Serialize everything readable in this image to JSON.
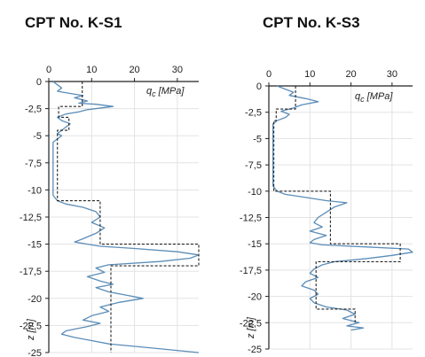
{
  "chart_data": [
    {
      "type": "line",
      "title": "CPT No. K-S1",
      "x_axis_label": "q",
      "x_axis_subscript": "c",
      "x_axis_unit": "[MPa]",
      "y_axis_label": "z [m]",
      "xlim": [
        0,
        35
      ],
      "ylim": [
        -25,
        0
      ],
      "x_ticks": [
        0,
        10,
        20,
        30
      ],
      "y_ticks": [
        0,
        -2.5,
        -5,
        -7.5,
        -10,
        -12.5,
        -15,
        -17.5,
        -20,
        -22.5,
        -25
      ],
      "y_tick_labels": [
        "0",
        "-2,5",
        "-5",
        "-7,5",
        "-10",
        "-12,5",
        "-15",
        "-17,5",
        "-20",
        "-22,5",
        "-25"
      ],
      "grid": true,
      "colors": {
        "measured": "#5b8db8",
        "design": "#222222",
        "grid": "#e3e3e3"
      },
      "series": [
        {
          "style": "solid",
          "points": [
            [
              1,
              0
            ],
            [
              2,
              -0.3
            ],
            [
              3,
              -0.6
            ],
            [
              2,
              -0.9
            ],
            [
              5,
              -1.1
            ],
            [
              8,
              -1.3
            ],
            [
              6,
              -1.5
            ],
            [
              9,
              -1.8
            ],
            [
              7,
              -2.0
            ],
            [
              11,
              -2.1
            ],
            [
              15,
              -2.3
            ],
            [
              9,
              -2.6
            ],
            [
              7,
              -2.8
            ],
            [
              4,
              -3.0
            ],
            [
              2,
              -3.3
            ],
            [
              3,
              -3.6
            ],
            [
              5,
              -3.9
            ],
            [
              4,
              -4.2
            ],
            [
              3,
              -4.5
            ],
            [
              2,
              -4.8
            ],
            [
              3,
              -5.0
            ],
            [
              2,
              -5.3
            ],
            [
              1,
              -5.6
            ],
            [
              1,
              -6.5
            ],
            [
              1,
              -7.5
            ],
            [
              1,
              -8.5
            ],
            [
              1,
              -9.5
            ],
            [
              1,
              -10.5
            ],
            [
              2,
              -11.0
            ],
            [
              4,
              -11.3
            ],
            [
              8,
              -11.6
            ],
            [
              11,
              -12.0
            ],
            [
              12,
              -12.5
            ],
            [
              10,
              -13.0
            ],
            [
              13,
              -13.5
            ],
            [
              11,
              -14.0
            ],
            [
              8,
              -14.5
            ],
            [
              6,
              -14.8
            ],
            [
              9,
              -15.0
            ],
            [
              12,
              -15.2
            ],
            [
              20,
              -15.4
            ],
            [
              30,
              -15.7
            ],
            [
              35,
              -16.0
            ],
            [
              33,
              -16.3
            ],
            [
              26,
              -16.6
            ],
            [
              14,
              -16.9
            ],
            [
              11,
              -17.2
            ],
            [
              13,
              -17.6
            ],
            [
              9,
              -18.0
            ],
            [
              12,
              -18.4
            ],
            [
              15,
              -18.7
            ],
            [
              11,
              -19.0
            ],
            [
              14,
              -19.4
            ],
            [
              18,
              -19.7
            ],
            [
              22,
              -20.0
            ],
            [
              16,
              -20.4
            ],
            [
              12,
              -20.8
            ],
            [
              14,
              -21.2
            ],
            [
              10,
              -21.6
            ],
            [
              8,
              -22.0
            ],
            [
              12,
              -22.3
            ],
            [
              9,
              -22.6
            ],
            [
              4,
              -23.0
            ],
            [
              3,
              -23.3
            ],
            [
              6,
              -23.6
            ],
            [
              10,
              -23.9
            ],
            [
              14,
              -24.2
            ],
            [
              22,
              -24.5
            ],
            [
              35,
              -25.0
            ]
          ]
        },
        {
          "style": "dashed",
          "points": [
            [
              7.8,
              0
            ],
            [
              7.8,
              -2.3
            ],
            [
              2.3,
              -2.3
            ],
            [
              2.3,
              -3.3
            ],
            [
              4.7,
              -3.3
            ],
            [
              4.7,
              -4.5
            ],
            [
              2.0,
              -4.5
            ],
            [
              2.0,
              -11.0
            ],
            [
              12.0,
              -11.0
            ],
            [
              12.0,
              -15.0
            ],
            [
              35,
              -15.0
            ],
            [
              35,
              -17.0
            ],
            [
              14.5,
              -17.0
            ],
            [
              14.5,
              -25.0
            ]
          ]
        }
      ]
    },
    {
      "type": "line",
      "title": "CPT No. K-S3",
      "x_axis_label": "q",
      "x_axis_subscript": "c",
      "x_axis_unit": "[MPa]",
      "y_axis_label": "z [m]",
      "xlim": [
        0,
        35
      ],
      "ylim": [
        -25,
        0
      ],
      "x_ticks": [
        0,
        10,
        20,
        30
      ],
      "y_ticks": [
        0,
        -2.5,
        -5,
        -7.5,
        -10,
        -12.5,
        -15,
        -17.5,
        -20,
        -22.5,
        -25
      ],
      "y_tick_labels": [
        "0",
        "-2,5",
        "-5",
        "-7,5",
        "-10",
        "-12,5",
        "-15",
        "-17,5",
        "-20",
        "-22,5",
        "-25"
      ],
      "grid": true,
      "colors": {
        "measured": "#5b8db8",
        "design": "#222222",
        "grid": "#e3e3e3"
      },
      "series": [
        {
          "style": "solid",
          "points": [
            [
              2,
              0
            ],
            [
              4,
              -0.3
            ],
            [
              6,
              -0.6
            ],
            [
              5,
              -0.9
            ],
            [
              9,
              -1.2
            ],
            [
              12,
              -1.5
            ],
            [
              8,
              -1.8
            ],
            [
              6,
              -2.1
            ],
            [
              3,
              -2.4
            ],
            [
              5,
              -2.7
            ],
            [
              4,
              -3.0
            ],
            [
              2,
              -3.3
            ],
            [
              1,
              -3.6
            ],
            [
              1,
              -5.0
            ],
            [
              1,
              -7.5
            ],
            [
              1,
              -9.5
            ],
            [
              2,
              -10.0
            ],
            [
              4,
              -10.3
            ],
            [
              9,
              -10.6
            ],
            [
              14,
              -10.9
            ],
            [
              19,
              -11.1
            ],
            [
              16,
              -11.5
            ],
            [
              14,
              -12.0
            ],
            [
              12,
              -12.5
            ],
            [
              11,
              -13.0
            ],
            [
              13,
              -13.4
            ],
            [
              10,
              -13.8
            ],
            [
              14,
              -14.2
            ],
            [
              11,
              -14.6
            ],
            [
              10,
              -14.9
            ],
            [
              13,
              -15.1
            ],
            [
              24,
              -15.3
            ],
            [
              34,
              -15.5
            ],
            [
              35,
              -15.8
            ],
            [
              30,
              -16.1
            ],
            [
              24,
              -16.4
            ],
            [
              16,
              -16.7
            ],
            [
              13,
              -17.0
            ],
            [
              11,
              -17.4
            ],
            [
              10,
              -17.8
            ],
            [
              12,
              -18.2
            ],
            [
              9,
              -18.6
            ],
            [
              8,
              -19.0
            ],
            [
              11,
              -19.4
            ],
            [
              12,
              -19.8
            ],
            [
              10,
              -20.2
            ],
            [
              11,
              -20.6
            ],
            [
              14,
              -21.0
            ],
            [
              19,
              -21.3
            ],
            [
              21,
              -21.7
            ],
            [
              18,
              -22.1
            ],
            [
              22,
              -22.5
            ],
            [
              19,
              -22.8
            ],
            [
              23,
              -23.0
            ],
            [
              20,
              -23.2
            ]
          ]
        },
        {
          "style": "dashed",
          "points": [
            [
              6.5,
              0
            ],
            [
              6.5,
              -2.2
            ],
            [
              1.8,
              -2.2
            ],
            [
              1.8,
              -3.3
            ],
            [
              1.2,
              -3.3
            ],
            [
              1.2,
              -10.0
            ],
            [
              15.0,
              -10.0
            ],
            [
              15.0,
              -15.0
            ],
            [
              32.0,
              -15.0
            ],
            [
              32.0,
              -16.7
            ],
            [
              11.5,
              -16.7
            ],
            [
              11.5,
              -21.2
            ],
            [
              21.0,
              -21.2
            ],
            [
              21.0,
              -22.6
            ]
          ]
        }
      ]
    }
  ]
}
